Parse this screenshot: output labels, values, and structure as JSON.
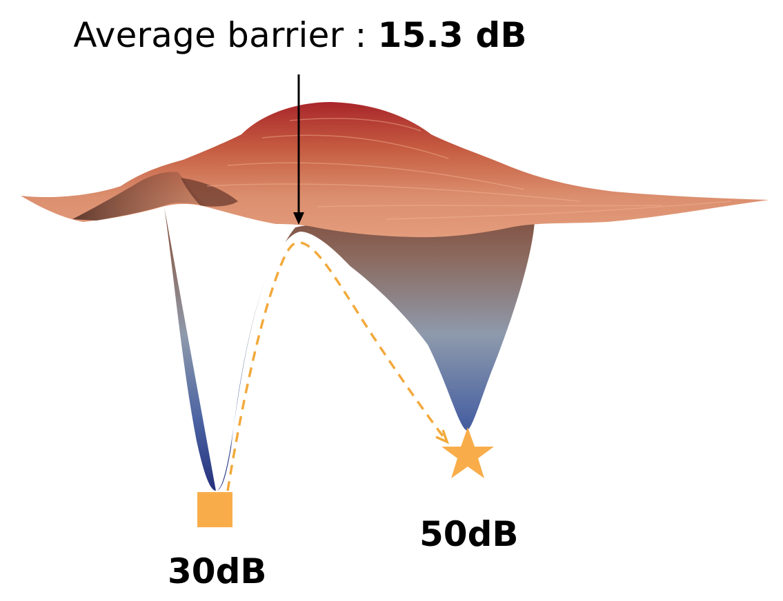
{
  "title": {
    "prefix": "Average barrier : ",
    "value": "15.3 dB"
  },
  "start_point": {
    "label": "30dB",
    "marker_icon": "square-icon"
  },
  "end_point": {
    "label": "50dB",
    "marker_icon": "star-icon"
  },
  "colors": {
    "surface_top": "#b32a22",
    "surface_mid": "#c97b63",
    "surface_low": "#2b3b86",
    "path": "#f2a93b",
    "marker": "#f9ad4a",
    "arrow": "#000000"
  }
}
